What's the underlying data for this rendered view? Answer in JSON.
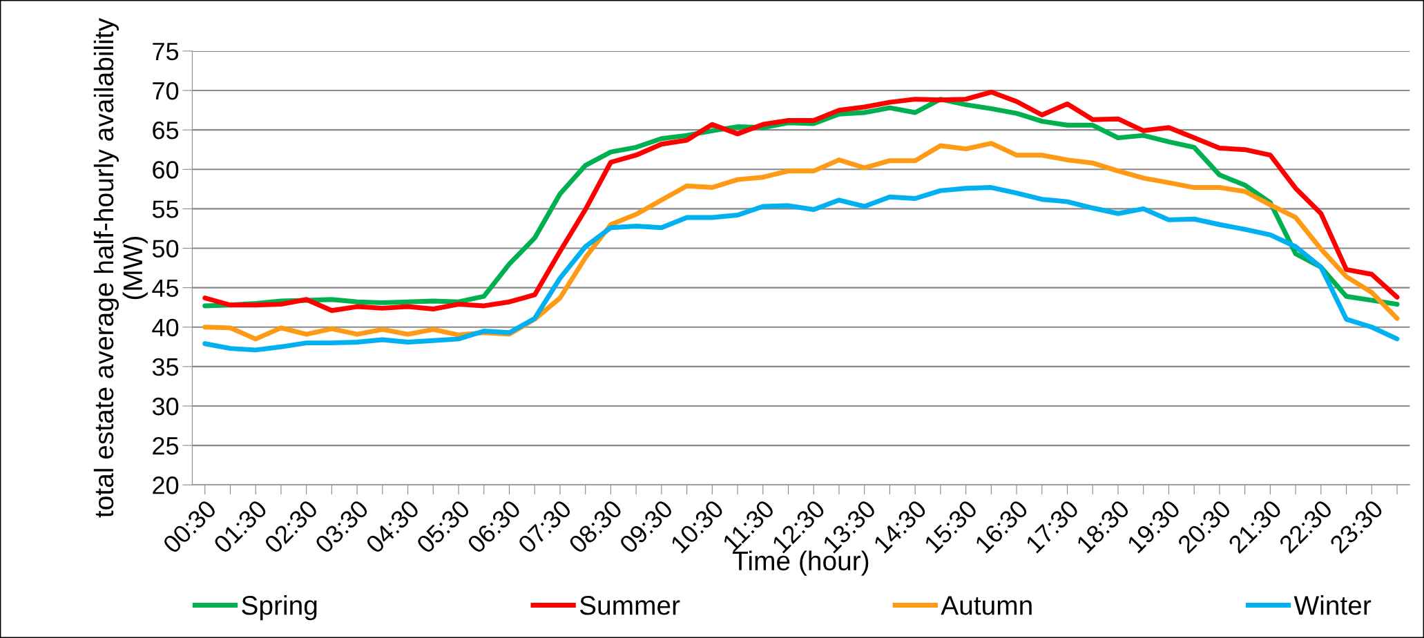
{
  "chart_data": {
    "type": "line",
    "xlabel": "Time (hour)",
    "ylabel": "total estate average half-hourly availability (MW)",
    "categories": [
      "00:30",
      null,
      "01:30",
      null,
      "02:30",
      null,
      "03:30",
      null,
      "04:30",
      null,
      "05:30",
      null,
      "06:30",
      null,
      "07:30",
      null,
      "08:30",
      null,
      "09:30",
      null,
      "10:30",
      null,
      "11:30",
      null,
      "12:30",
      null,
      "13:30",
      null,
      "14:30",
      null,
      "15:30",
      null,
      "16:30",
      null,
      "17:30",
      null,
      "18:30",
      null,
      "19:30",
      null,
      "20:30",
      null,
      "21:30",
      null,
      "22:30",
      null,
      "23:30",
      null
    ],
    "series": [
      {
        "name": "Spring",
        "color": "#00b050",
        "values": [
          42.7,
          42.8,
          43.0,
          43.3,
          43.4,
          43.5,
          43.2,
          43.1,
          43.2,
          43.3,
          43.2,
          43.9,
          48.0,
          51.3,
          56.9,
          60.5,
          62.2,
          62.8,
          63.9,
          64.3,
          64.9,
          65.4,
          65.3,
          65.9,
          65.8,
          67.0,
          67.2,
          67.8,
          67.2,
          68.9,
          68.2,
          67.7,
          67.1,
          66.1,
          65.6,
          65.6,
          64.0,
          64.3,
          63.5,
          62.8,
          59.3,
          58.0,
          55.8,
          49.3,
          47.6,
          43.9,
          43.4,
          42.9
        ]
      },
      {
        "name": "Summer",
        "color": "#ff0000",
        "values": [
          43.7,
          42.8,
          42.8,
          42.9,
          43.5,
          42.1,
          42.6,
          42.4,
          42.6,
          42.3,
          42.9,
          42.7,
          43.2,
          44.1,
          49.6,
          54.9,
          60.9,
          61.8,
          63.2,
          63.7,
          65.7,
          64.5,
          65.7,
          66.2,
          66.2,
          67.5,
          67.9,
          68.5,
          68.9,
          68.8,
          68.9,
          69.8,
          68.6,
          66.9,
          68.3,
          66.3,
          66.4,
          64.9,
          65.3,
          64.0,
          62.7,
          62.5,
          61.8,
          57.6,
          54.4,
          47.3,
          46.7,
          43.8
        ]
      },
      {
        "name": "Autumn",
        "color": "#ff9a16",
        "values": [
          40.0,
          39.9,
          38.5,
          39.9,
          39.1,
          39.8,
          39.1,
          39.7,
          39.1,
          39.7,
          39.0,
          39.3,
          39.1,
          41.0,
          43.7,
          48.8,
          53.0,
          54.3,
          56.1,
          57.9,
          57.7,
          58.7,
          59.0,
          59.8,
          59.8,
          61.2,
          60.2,
          61.1,
          61.1,
          63.0,
          62.6,
          63.3,
          61.8,
          61.8,
          61.2,
          60.8,
          59.8,
          58.9,
          58.3,
          57.7,
          57.7,
          57.2,
          55.5,
          53.9,
          49.9,
          46.4,
          44.4,
          41.1
        ]
      },
      {
        "name": "Winter",
        "color": "#00b0f0",
        "values": [
          37.9,
          37.3,
          37.1,
          37.5,
          38.0,
          38.0,
          38.1,
          38.4,
          38.1,
          38.3,
          38.5,
          39.5,
          39.3,
          41.1,
          46.2,
          50.2,
          52.6,
          52.8,
          52.6,
          53.9,
          53.9,
          54.2,
          55.3,
          55.4,
          54.9,
          56.1,
          55.3,
          56.5,
          56.3,
          57.3,
          57.6,
          57.7,
          57.0,
          56.2,
          55.9,
          55.1,
          54.4,
          55.0,
          53.6,
          53.7,
          53.0,
          52.4,
          51.7,
          50.2,
          47.6,
          41.0,
          40.0,
          38.5
        ]
      }
    ],
    "ylim": [
      20,
      75
    ],
    "yticks": [
      20,
      25,
      30,
      35,
      40,
      45,
      50,
      55,
      60,
      65,
      70,
      75
    ],
    "grid": "y",
    "legend": "bottom",
    "marker": "none",
    "line_style": "solid"
  }
}
